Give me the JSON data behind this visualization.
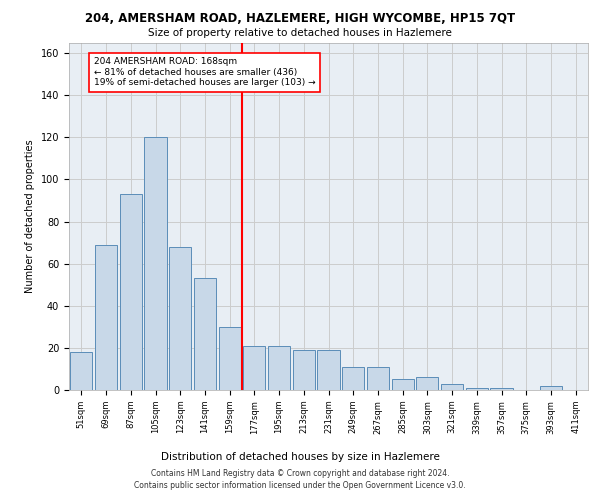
{
  "title_line1": "204, AMERSHAM ROAD, HAZLEMERE, HIGH WYCOMBE, HP15 7QT",
  "title_line2": "Size of property relative to detached houses in Hazlemere",
  "xlabel": "Distribution of detached houses by size in Hazlemere",
  "ylabel": "Number of detached properties",
  "bar_labels": [
    "51sqm",
    "69sqm",
    "87sqm",
    "105sqm",
    "123sqm",
    "141sqm",
    "159sqm",
    "177sqm",
    "195sqm",
    "213sqm",
    "231sqm",
    "249sqm",
    "267sqm",
    "285sqm",
    "303sqm",
    "321sqm",
    "339sqm",
    "357sqm",
    "375sqm",
    "393sqm",
    "411sqm"
  ],
  "bar_values": [
    18,
    69,
    93,
    120,
    68,
    53,
    30,
    21,
    21,
    19,
    19,
    11,
    11,
    5,
    6,
    3,
    1,
    1,
    0,
    2,
    0
  ],
  "bar_color": "#c8d8e8",
  "bar_edge_color": "#5b8db8",
  "vline_color": "red",
  "annotation_text": "204 AMERSHAM ROAD: 168sqm\n← 81% of detached houses are smaller (436)\n19% of semi-detached houses are larger (103) →",
  "annotation_box_color": "white",
  "annotation_box_edge": "red",
  "ylim": [
    0,
    165
  ],
  "yticks": [
    0,
    20,
    40,
    60,
    80,
    100,
    120,
    140,
    160
  ],
  "grid_color": "#cccccc",
  "background_color": "#e8eef4",
  "footnote1": "Contains HM Land Registry data © Crown copyright and database right 2024.",
  "footnote2": "Contains public sector information licensed under the Open Government Licence v3.0."
}
